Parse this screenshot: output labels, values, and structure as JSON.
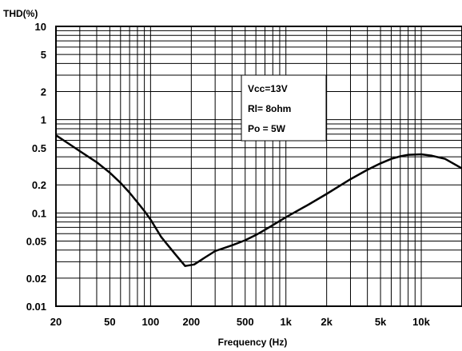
{
  "chart_data": {
    "type": "line",
    "title": "",
    "ylabel": "THD(%)",
    "xlabel": "Frequency (Hz)",
    "x_scale": "log",
    "y_scale": "log",
    "xlim": [
      20,
      20000
    ],
    "ylim": [
      0.01,
      10
    ],
    "grid": true,
    "x_tick_values": [
      20,
      50,
      100,
      200,
      500,
      1000,
      2000,
      5000,
      10000
    ],
    "x_tick_labels": [
      "20",
      "50",
      "100",
      "200",
      "500",
      "1k",
      "2k",
      "5k",
      "10k"
    ],
    "y_tick_values": [
      10,
      5,
      2,
      1,
      0.5,
      0.2,
      0.1,
      0.05,
      0.02,
      0.01
    ],
    "y_tick_labels": [
      "10",
      "5",
      "2",
      "1",
      "0.5",
      "0.2",
      "0.1",
      "0.05",
      "0.02",
      "0.01"
    ],
    "legend_position": "top-right",
    "legend_lines": [
      "Vcc=13V",
      "Rl= 8ohm",
      "Po = 5W"
    ],
    "series": [
      {
        "color": "#000000",
        "x": [
          20,
          25,
          30,
          40,
          50,
          60,
          70,
          80,
          90,
          100,
          120,
          150,
          180,
          210,
          250,
          300,
          400,
          500,
          600,
          700,
          800,
          1000,
          1500,
          2000,
          3000,
          4000,
          5000,
          6000,
          7000,
          8000,
          10000,
          12000,
          15000,
          20000
        ],
        "y": [
          0.68,
          0.55,
          0.46,
          0.35,
          0.27,
          0.21,
          0.165,
          0.13,
          0.105,
          0.085,
          0.055,
          0.037,
          0.027,
          0.028,
          0.033,
          0.039,
          0.045,
          0.051,
          0.058,
          0.066,
          0.074,
          0.09,
          0.125,
          0.16,
          0.23,
          0.29,
          0.34,
          0.38,
          0.405,
          0.42,
          0.425,
          0.41,
          0.38,
          0.3
        ]
      }
    ]
  }
}
